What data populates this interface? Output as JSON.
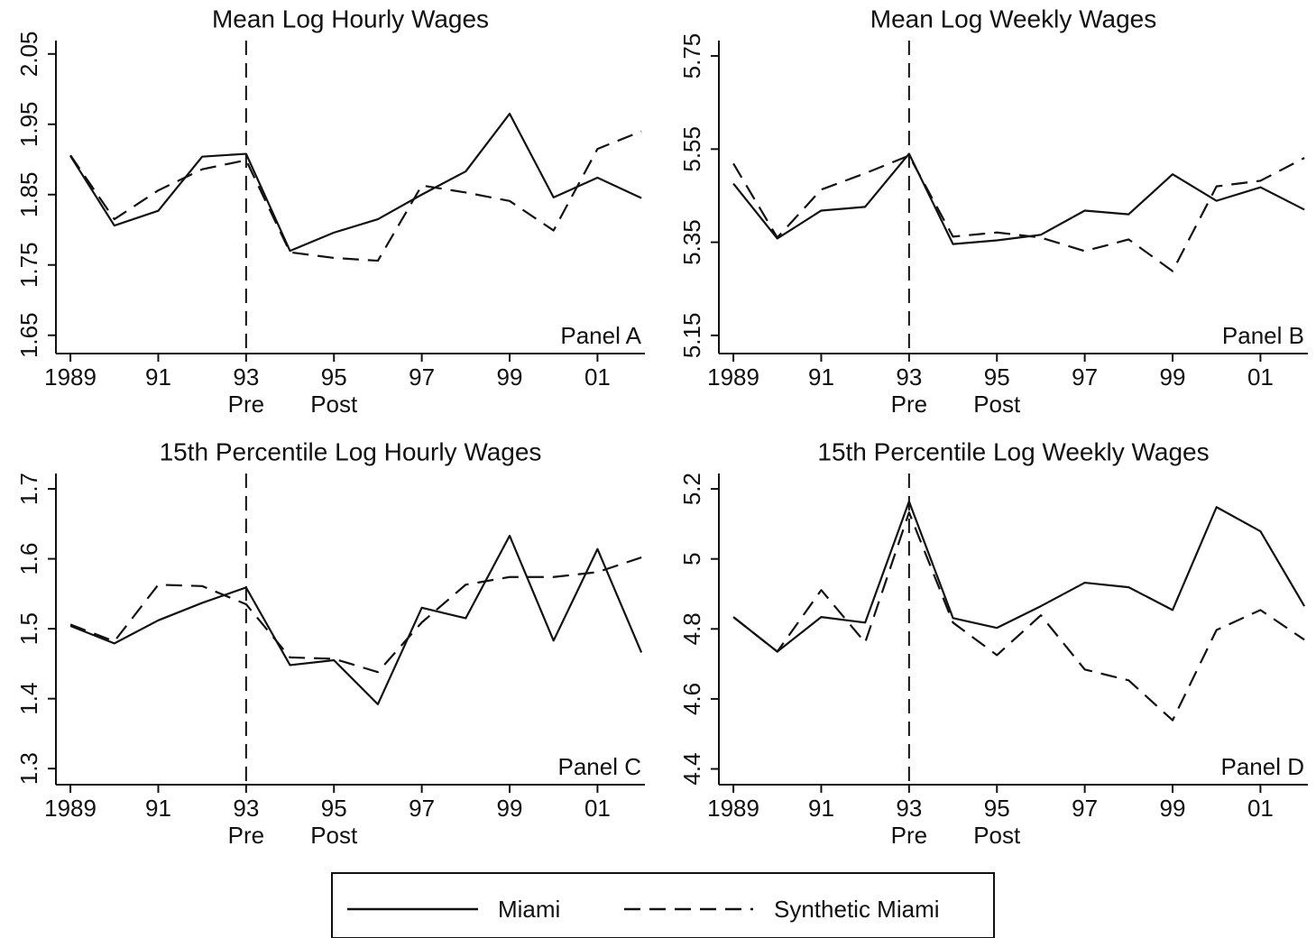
{
  "chart_data": [
    {
      "type": "line",
      "title": "Mean Log Hourly Wages",
      "annotation": "Panel A",
      "x": [
        1989,
        1990,
        1991,
        1992,
        1993,
        1994,
        1995,
        1996,
        1997,
        1998,
        1999,
        2000,
        2001,
        2002
      ],
      "series": [
        {
          "name": "Miami",
          "color": "#111111",
          "dash": "solid",
          "values": [
            1.905,
            1.806,
            1.827,
            1.904,
            1.908,
            1.77,
            1.796,
            1.815,
            1.85,
            1.883,
            1.965,
            1.846,
            1.874,
            1.845
          ]
        },
        {
          "name": "Synthetic Miami",
          "color": "#111111",
          "dash": "dashed",
          "values": [
            1.906,
            1.815,
            1.856,
            1.886,
            1.899,
            1.768,
            1.76,
            1.756,
            1.863,
            1.853,
            1.841,
            1.799,
            1.915,
            1.94
          ]
        }
      ],
      "xlim": [
        1988.67,
        2002.08
      ],
      "ylim": [
        1.624,
        2.069
      ],
      "xticks": [
        1989,
        {
          "value": 1991,
          "label": "91"
        },
        {
          "value": 1993,
          "label": "93"
        },
        {
          "value": 1995,
          "label": "95"
        },
        {
          "value": 1997,
          "label": "97"
        },
        {
          "value": 1999,
          "label": "99"
        },
        {
          "value": 2001,
          "label": "01"
        }
      ],
      "yticks": [
        1.65,
        1.75,
        1.85,
        1.95,
        2.05
      ],
      "event_x": 1993,
      "period_labels": [
        {
          "value": 1993,
          "label": "Pre"
        },
        {
          "value": 1995,
          "label": "Post"
        }
      ],
      "grid": false
    },
    {
      "type": "line",
      "title": "Mean Log Weekly Wages",
      "annotation": "Panel B",
      "x": [
        1989,
        1990,
        1991,
        1992,
        1993,
        1994,
        1995,
        1996,
        1997,
        1998,
        1999,
        2000,
        2001,
        2002
      ],
      "series": [
        {
          "name": "Miami",
          "color": "#111111",
          "dash": "solid",
          "values": [
            5.476,
            5.358,
            5.418,
            5.426,
            5.54,
            5.346,
            5.354,
            5.366,
            5.418,
            5.41,
            5.496,
            5.439,
            5.468,
            5.42
          ]
        },
        {
          "name": "Synthetic Miami",
          "color": "#111111",
          "dash": "dashed",
          "values": [
            5.519,
            5.36,
            5.463,
            5.498,
            5.536,
            5.362,
            5.371,
            5.36,
            5.331,
            5.356,
            5.288,
            5.47,
            5.482,
            5.531
          ]
        }
      ],
      "xlim": [
        1988.67,
        2002.08
      ],
      "ylim": [
        5.111,
        5.783
      ],
      "xticks": [
        1989,
        {
          "value": 1991,
          "label": "91"
        },
        {
          "value": 1993,
          "label": "93"
        },
        {
          "value": 1995,
          "label": "95"
        },
        {
          "value": 1997,
          "label": "97"
        },
        {
          "value": 1999,
          "label": "99"
        },
        {
          "value": 2001,
          "label": "01"
        }
      ],
      "yticks": [
        5.15,
        5.35,
        5.55,
        5.75
      ],
      "event_x": 1993,
      "period_labels": [
        {
          "value": 1993,
          "label": "Pre"
        },
        {
          "value": 1995,
          "label": "Post"
        }
      ],
      "grid": false
    },
    {
      "type": "line",
      "title": "15th Percentile Log Hourly Wages",
      "annotation": "Panel C",
      "x": [
        1989,
        1990,
        1991,
        1992,
        1993,
        1994,
        1995,
        1996,
        1997,
        1998,
        1999,
        2000,
        2001,
        2002
      ],
      "series": [
        {
          "name": "Miami",
          "color": "#111111",
          "dash": "solid",
          "values": [
            1.504,
            1.479,
            1.512,
            1.537,
            1.559,
            1.448,
            1.455,
            1.392,
            1.53,
            1.515,
            1.633,
            1.483,
            1.614,
            1.466
          ]
        },
        {
          "name": "Synthetic Miami",
          "color": "#111111",
          "dash": "dashed",
          "values": [
            1.506,
            1.482,
            1.563,
            1.561,
            1.535,
            1.459,
            1.457,
            1.438,
            1.509,
            1.563,
            1.574,
            1.574,
            1.581,
            1.602
          ]
        }
      ],
      "xlim": [
        1988.67,
        2002.08
      ],
      "ylim": [
        1.277,
        1.722
      ],
      "xticks": [
        1989,
        {
          "value": 1991,
          "label": "91"
        },
        {
          "value": 1993,
          "label": "93"
        },
        {
          "value": 1995,
          "label": "95"
        },
        {
          "value": 1997,
          "label": "97"
        },
        {
          "value": 1999,
          "label": "99"
        },
        {
          "value": 2001,
          "label": "01"
        }
      ],
      "yticks": [
        1.3,
        1.4,
        1.5,
        1.6,
        1.7
      ],
      "event_x": 1993,
      "period_labels": [
        {
          "value": 1993,
          "label": "Pre"
        },
        {
          "value": 1995,
          "label": "Post"
        }
      ],
      "grid": false
    },
    {
      "type": "line",
      "title": "15th Percentile Log Weekly Wages",
      "annotation": "Panel D",
      "x": [
        1989,
        1990,
        1991,
        1992,
        1993,
        1994,
        1995,
        1996,
        1997,
        1998,
        1999,
        2000,
        2001,
        2002
      ],
      "series": [
        {
          "name": "Miami",
          "color": "#111111",
          "dash": "solid",
          "values": [
            4.834,
            4.735,
            4.834,
            4.818,
            5.164,
            4.831,
            4.803,
            4.865,
            4.932,
            4.919,
            4.854,
            5.148,
            5.079,
            4.865
          ]
        },
        {
          "name": "Synthetic Miami",
          "color": "#111111",
          "dash": "dashed",
          "values": [
            4.834,
            4.735,
            4.911,
            4.761,
            5.133,
            4.818,
            4.725,
            4.839,
            4.684,
            4.653,
            4.539,
            4.797,
            4.854,
            4.769
          ]
        }
      ],
      "xlim": [
        1988.67,
        2002.08
      ],
      "ylim": [
        4.355,
        5.244
      ],
      "xticks": [
        1989,
        {
          "value": 1991,
          "label": "91"
        },
        {
          "value": 1993,
          "label": "93"
        },
        {
          "value": 1995,
          "label": "95"
        },
        {
          "value": 1997,
          "label": "97"
        },
        {
          "value": 1999,
          "label": "99"
        },
        {
          "value": 2001,
          "label": "01"
        }
      ],
      "yticks": [
        4.4,
        4.6,
        4.8,
        5,
        5.2
      ],
      "event_x": 1993,
      "period_labels": [
        {
          "value": 1993,
          "label": "Pre"
        },
        {
          "value": 1995,
          "label": "Post"
        }
      ],
      "grid": false
    }
  ]
}
